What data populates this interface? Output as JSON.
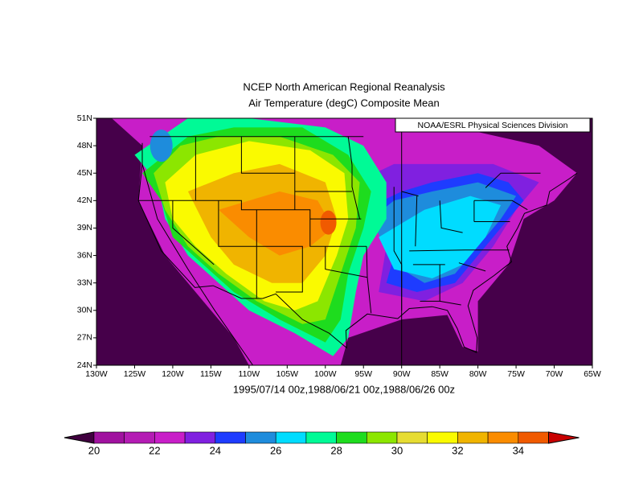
{
  "title": [
    "NCEP North American Regional Reanalysis",
    "Air Temperature (degC) Composite Mean"
  ],
  "credit": "NOAA/ESRL Physical Sciences Division",
  "map": {
    "lat_ticks": [
      "51N",
      "48N",
      "45N",
      "42N",
      "39N",
      "36N",
      "33N",
      "30N",
      "27N",
      "24N"
    ],
    "lon_ticks": [
      "130W",
      "125W",
      "120W",
      "115W",
      "110W",
      "105W",
      "100W",
      "95W",
      "90W",
      "85W",
      "80W",
      "75W",
      "70W",
      "65W"
    ],
    "caption": "1995/07/14 00z,1988/06/21 00z,1988/06/26 00z"
  },
  "colorbar": {
    "under_color": "#40003f",
    "colors": [
      "#a0129f",
      "#b41cb4",
      "#c81ec8",
      "#8020e0",
      "#1e3cff",
      "#1e8cdc",
      "#00dcff",
      "#00fa96",
      "#1edc1e",
      "#8ce600",
      "#e6dc32",
      "#fafa00",
      "#f0b400",
      "#fa8c00",
      "#f05a00"
    ],
    "over_color": "#c80000",
    "labels": [
      20,
      22,
      24,
      26,
      28,
      30,
      32,
      34
    ]
  }
}
